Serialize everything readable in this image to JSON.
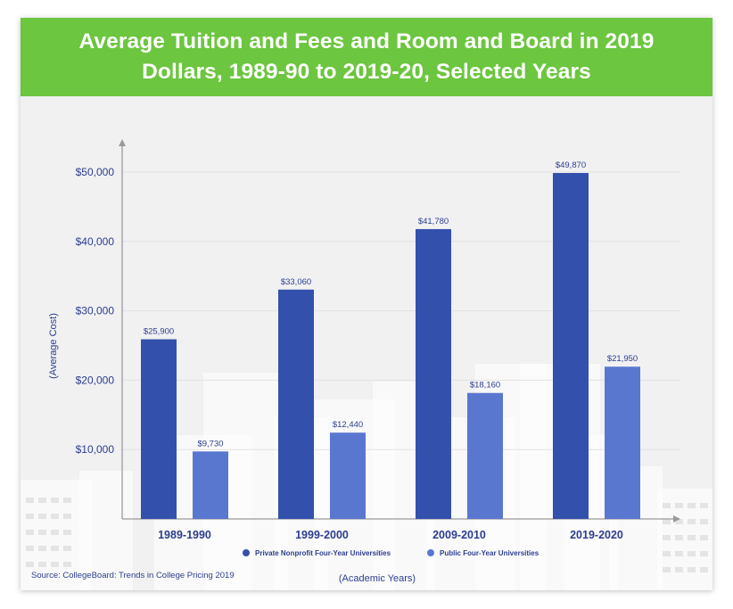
{
  "header": {
    "title_line1": "Average Tuition and Fees and Room and Board in 2019",
    "title_line2": "Dollars, 1989-90 to 2019-20, Selected Years"
  },
  "source": "Source: CollegeBoard: Trends in College Pricing 2019",
  "colors": {
    "header_bg": "#6cc63f",
    "private": "#3450ad",
    "public": "#5a77d0",
    "text": "#2d3d8e"
  },
  "chart_data": {
    "type": "bar",
    "categories": [
      "1989-1990",
      "1999-2000",
      "2009-2010",
      "2019-2020"
    ],
    "series": [
      {
        "name": "Private Nonprofit Four-Year Universities",
        "values": [
          25900,
          33060,
          41780,
          49870
        ],
        "labels": [
          "$25,900",
          "$33,060",
          "$41,780",
          "$49,870"
        ],
        "color": "#3450ad"
      },
      {
        "name": "Public Four-Year Universities",
        "values": [
          9730,
          12440,
          18160,
          21950
        ],
        "labels": [
          "$9,730",
          "$12,440",
          "$18,160",
          "$21,950"
        ],
        "color": "#5a77d0"
      }
    ],
    "ylabel": "(Average Cost)",
    "xlabel": "(Academic Years)",
    "ylim": [
      0,
      55000
    ],
    "yticks": [
      10000,
      20000,
      30000,
      40000,
      50000
    ],
    "ytick_labels": [
      "$10,000",
      "$20,000",
      "$30,000",
      "$40,000",
      "$50,000"
    ],
    "grid": true,
    "legend_position": "bottom"
  }
}
